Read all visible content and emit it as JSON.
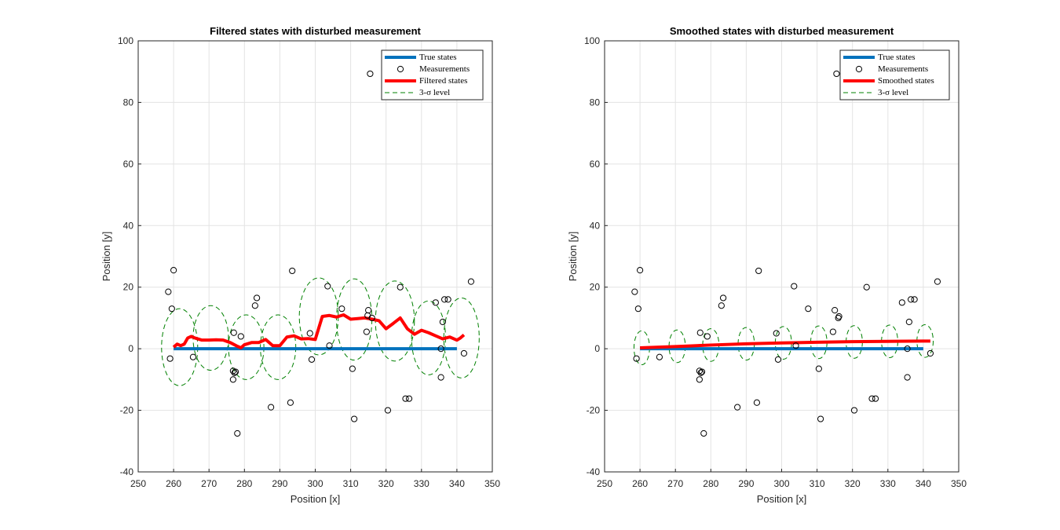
{
  "chart_data": [
    {
      "type": "line",
      "title": "Filtered states with disturbed measurement",
      "xlabel": "Position [x]",
      "ylabel": "Position [y]",
      "xlim": [
        250,
        350
      ],
      "ylim": [
        -40,
        100
      ],
      "xticks": [
        "250",
        "260",
        "270",
        "280",
        "290",
        "300",
        "310",
        "320",
        "330",
        "340",
        "350"
      ],
      "yticks": [
        "-40",
        "-20",
        "0",
        "20",
        "40",
        "60",
        "80",
        "100"
      ],
      "grid": true,
      "legend_position": "top-right",
      "legend": [
        "True states",
        "Measurements",
        "Filtered states",
        "3-σ level"
      ],
      "colors": {
        "true": "#0072BD",
        "estimate": "#FF0000",
        "sigma": "#008000",
        "marker": "#000000"
      },
      "true_states": {
        "x": [
          260,
          340
        ],
        "y": [
          0,
          0
        ]
      },
      "measurements": {
        "x": [
          258.5,
          259,
          259.5,
          260,
          265.5,
          276.8,
          277,
          277.2,
          277.5,
          278,
          279,
          283,
          283.5,
          287.5,
          293,
          293.5,
          298.5,
          299,
          303.5,
          304,
          307.5,
          310.5,
          311,
          314.5,
          315,
          315.5,
          316,
          320.5,
          324,
          325.5,
          326.5,
          334,
          335.5,
          335.5,
          336,
          336.5,
          337.5,
          342,
          344,
          314.8,
          276.8
        ],
        "y": [
          18.5,
          -3.2,
          13,
          25.5,
          -2.7,
          -10,
          5.2,
          -7.8,
          -7.5,
          -27.5,
          4,
          14,
          16.5,
          -19,
          -17.5,
          25.3,
          5,
          -3.5,
          20.3,
          1,
          13,
          -6.5,
          -22.8,
          5.5,
          12.5,
          89.3,
          10,
          -20,
          20,
          -16.2,
          -16.2,
          15,
          0,
          -9.3,
          8.7,
          16,
          16,
          -1.5,
          21.8,
          10.8,
          -7.2
        ]
      },
      "estimate_name": "Filtered states",
      "estimate": {
        "x": [
          260,
          261,
          262,
          263,
          264,
          265,
          266,
          268,
          270,
          272,
          274,
          276,
          278,
          279,
          280,
          282,
          284,
          286,
          288,
          290,
          292,
          294,
          296,
          298,
          300,
          302,
          304,
          306,
          308,
          310,
          312,
          314,
          316,
          318,
          320,
          322,
          324,
          326,
          328,
          330,
          332,
          334,
          336,
          338,
          340,
          341,
          342
        ],
        "y": [
          0.5,
          1.5,
          1,
          1.5,
          3.5,
          4,
          3.5,
          2.8,
          2.8,
          2.9,
          2.8,
          2,
          0.8,
          0.3,
          1.3,
          2,
          2,
          3,
          1,
          1,
          3.8,
          4.2,
          3.2,
          3.3,
          3,
          10.5,
          10.8,
          10.3,
          11,
          9.6,
          9.8,
          10,
          9.6,
          9.1,
          6.5,
          8.2,
          10,
          6.5,
          4.7,
          6,
          5.2,
          4.2,
          3.2,
          3.8,
          2.8,
          3.5,
          4.5
        ]
      },
      "sigma_ellipses": [
        {
          "cx": 261.7,
          "cy": 0.5,
          "rx": 5.1,
          "ry": 12.5
        },
        {
          "cx": 270.5,
          "cy": 3.5,
          "rx": 5.0,
          "ry": 10.5
        },
        {
          "cx": 280.5,
          "cy": 0.5,
          "rx": 5.0,
          "ry": 10.5
        },
        {
          "cx": 289.5,
          "cy": 0.5,
          "rx": 5.0,
          "ry": 10.5
        },
        {
          "cx": 301.0,
          "cy": 10.5,
          "rx": 5.5,
          "ry": 12.5
        },
        {
          "cx": 311.0,
          "cy": 9.5,
          "rx": 5.0,
          "ry": 13.2
        },
        {
          "cx": 322.5,
          "cy": 9.0,
          "rx": 5.5,
          "ry": 13.0
        },
        {
          "cx": 332.0,
          "cy": 3.5,
          "rx": 4.8,
          "ry": 12.0
        },
        {
          "cx": 341.3,
          "cy": 3.5,
          "rx": 5.0,
          "ry": 13.0
        }
      ]
    },
    {
      "type": "line",
      "title": "Smoothed states with disturbed measurement",
      "xlabel": "Position [x]",
      "ylabel": "Position [y]",
      "xlim": [
        250,
        350
      ],
      "ylim": [
        -40,
        100
      ],
      "xticks": [
        "250",
        "260",
        "270",
        "280",
        "290",
        "300",
        "310",
        "320",
        "330",
        "340",
        "350"
      ],
      "yticks": [
        "-40",
        "-20",
        "0",
        "20",
        "40",
        "60",
        "80",
        "100"
      ],
      "grid": true,
      "legend_position": "top-right",
      "legend": [
        "True states",
        "Measurements",
        "Smoothed states",
        "3-σ level"
      ],
      "colors": {
        "true": "#0072BD",
        "estimate": "#FF0000",
        "sigma": "#008000",
        "marker": "#000000"
      },
      "true_states": {
        "x": [
          260,
          340
        ],
        "y": [
          0,
          0
        ]
      },
      "measurements": {
        "x": [
          258.5,
          259,
          259.5,
          260,
          265.5,
          276.8,
          277,
          277.2,
          277.5,
          278,
          279,
          283,
          283.5,
          287.5,
          293,
          293.5,
          298.5,
          299,
          303.5,
          304,
          307.5,
          310.5,
          311,
          314.5,
          315,
          315.5,
          316,
          320.5,
          324,
          325.5,
          326.5,
          334,
          335.5,
          335.5,
          336,
          336.5,
          337.5,
          342,
          344,
          316.2,
          276.8
        ],
        "y": [
          18.5,
          -3.2,
          13,
          25.5,
          -2.7,
          -10,
          5.2,
          -7.8,
          -7.5,
          -27.5,
          4,
          14,
          16.5,
          -19,
          -17.5,
          25.3,
          5,
          -3.5,
          20.3,
          1,
          13,
          -6.5,
          -22.8,
          5.5,
          12.5,
          89.3,
          10,
          -20,
          20,
          -16.2,
          -16.2,
          15,
          0,
          -9.3,
          8.7,
          16,
          16,
          -1.5,
          21.8,
          10.5,
          -7.2
        ]
      },
      "estimate_name": "Smoothed states",
      "estimate": {
        "x": [
          260,
          270,
          280,
          290,
          300,
          310,
          320,
          330,
          340,
          342
        ],
        "y": [
          0.3,
          0.7,
          1.2,
          1.6,
          1.9,
          2.1,
          2.3,
          2.4,
          2.5,
          2.5
        ]
      },
      "sigma_ellipses": [
        {
          "cx": 260.5,
          "cy": 0.3,
          "rx": 2.2,
          "ry": 5.5
        },
        {
          "cx": 270.5,
          "cy": 0.8,
          "rx": 2.3,
          "ry": 5.3
        },
        {
          "cx": 280.0,
          "cy": 1.2,
          "rx": 2.3,
          "ry": 5.3
        },
        {
          "cx": 290.0,
          "cy": 1.6,
          "rx": 2.3,
          "ry": 5.3
        },
        {
          "cx": 300.5,
          "cy": 1.9,
          "rx": 2.3,
          "ry": 5.3
        },
        {
          "cx": 310.5,
          "cy": 2.1,
          "rx": 2.3,
          "ry": 5.3
        },
        {
          "cx": 320.5,
          "cy": 2.2,
          "rx": 2.3,
          "ry": 5.3
        },
        {
          "cx": 330.5,
          "cy": 2.4,
          "rx": 2.3,
          "ry": 5.3
        },
        {
          "cx": 340.5,
          "cy": 2.5,
          "rx": 2.3,
          "ry": 5.3
        }
      ]
    }
  ]
}
